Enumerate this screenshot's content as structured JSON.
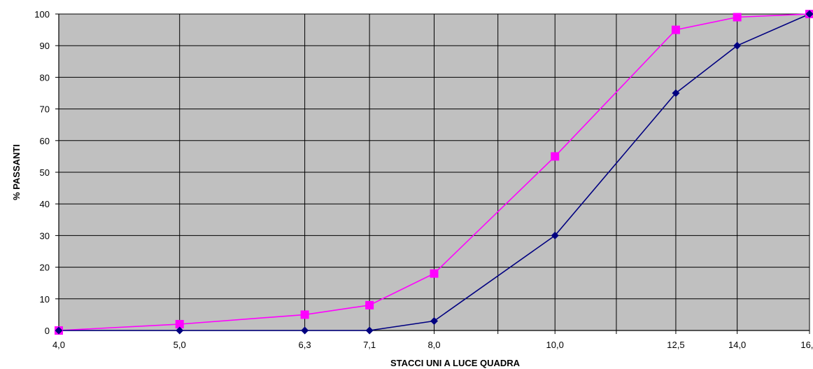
{
  "chart_data": {
    "type": "line",
    "title": "",
    "xlabel": "STACCI UNI A LUCE QUADRA",
    "ylabel": "% PASSANTI",
    "x_scale": "log",
    "xlim": [
      4.0,
      16.0
    ],
    "ylim": [
      0,
      100
    ],
    "grid": true,
    "plot_background": "#c0c0c0",
    "x_ticks": [
      {
        "value": 4.0,
        "label": "4,0"
      },
      {
        "value": 5.0,
        "label": "5,0"
      },
      {
        "value": 6.3,
        "label": "6,3"
      },
      {
        "value": 7.1,
        "label": "7,1"
      },
      {
        "value": 8.0,
        "label": "8,0"
      },
      {
        "value": 10.0,
        "label": "10,0"
      },
      {
        "value": 12.5,
        "label": "12,5"
      },
      {
        "value": 14.0,
        "label": "14,0"
      },
      {
        "value": 16.0,
        "label": "16,0"
      }
    ],
    "x_minor_gridlines": [
      9.0,
      11.2
    ],
    "y_ticks": [
      0,
      10,
      20,
      30,
      40,
      50,
      60,
      70,
      80,
      90,
      100
    ],
    "series": [
      {
        "color": "#ff00ff",
        "marker": "square",
        "points": [
          [
            4.0,
            0
          ],
          [
            5.0,
            2
          ],
          [
            6.3,
            5
          ],
          [
            7.1,
            8
          ],
          [
            8.0,
            18
          ],
          [
            10.0,
            55
          ],
          [
            12.5,
            95
          ],
          [
            14.0,
            99
          ],
          [
            16.0,
            100
          ]
        ]
      },
      {
        "color": "#000080",
        "marker": "diamond",
        "points": [
          [
            4.0,
            0
          ],
          [
            5.0,
            0
          ],
          [
            6.3,
            0
          ],
          [
            7.1,
            0
          ],
          [
            8.0,
            3
          ],
          [
            10.0,
            30
          ],
          [
            12.5,
            75
          ],
          [
            14.0,
            90
          ],
          [
            16.0,
            100
          ]
        ]
      }
    ]
  }
}
